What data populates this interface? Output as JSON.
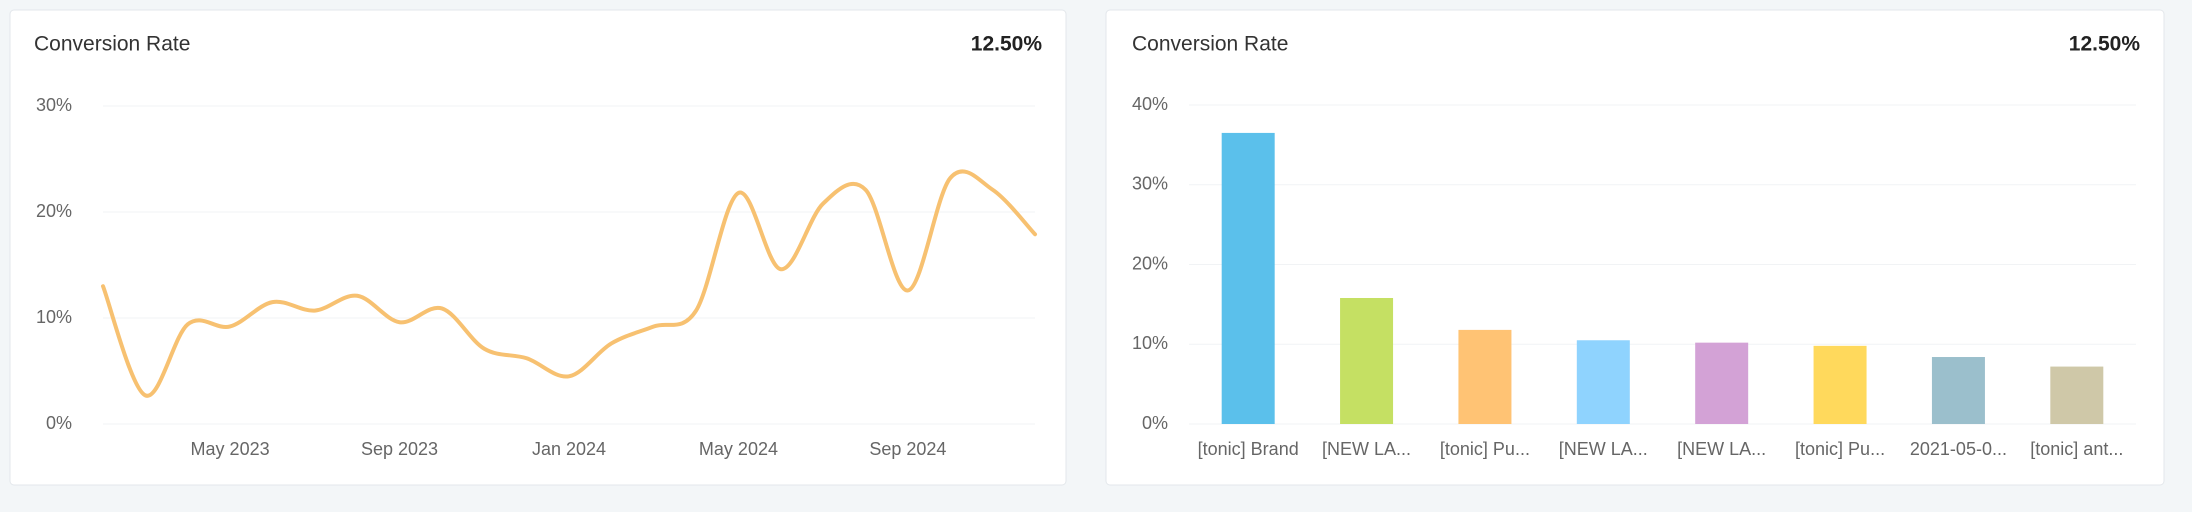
{
  "chart_data": [
    {
      "type": "line",
      "title": "Conversion Rate",
      "summary": "12.50%",
      "x": [
        "2023-02",
        "2023-03",
        "2023-04",
        "2023-05",
        "2023-06",
        "2023-07",
        "2023-08",
        "2023-09",
        "2023-10",
        "2023-11",
        "2023-12",
        "2024-01",
        "2024-02",
        "2024-03",
        "2024-04",
        "2024-05",
        "2024-06",
        "2024-07",
        "2024-08",
        "2024-09",
        "2024-10",
        "2024-11",
        "2024-12"
      ],
      "values": [
        13.0,
        2.7,
        9.4,
        9.2,
        11.5,
        10.7,
        12.1,
        9.6,
        10.9,
        7.1,
        6.2,
        4.5,
        7.6,
        9.2,
        10.7,
        21.8,
        14.6,
        20.8,
        22.1,
        12.6,
        23.2,
        22.1,
        17.9
      ],
      "color": "#f7c171",
      "xticks": [
        {
          "value": "2023-05",
          "label": "May 2023"
        },
        {
          "value": "2023-09",
          "label": "Sep 2023"
        },
        {
          "value": "2024-01",
          "label": "Jan 2024"
        },
        {
          "value": "2024-05",
          "label": "May 2024"
        },
        {
          "value": "2024-09",
          "label": "Sep 2024"
        }
      ],
      "ylim": [
        0,
        30
      ],
      "yticks": [
        {
          "value": 0,
          "label": "0%"
        },
        {
          "value": 10,
          "label": "10%"
        },
        {
          "value": 20,
          "label": "20%"
        },
        {
          "value": 30,
          "label": "30%"
        }
      ],
      "grid": true
    },
    {
      "type": "bar",
      "title": "Conversion Rate",
      "summary": "12.50%",
      "categories": [
        "[tonic] Brand",
        "[NEW LA...",
        "[tonic] Pu...",
        "[NEW LA...",
        "[NEW LA...",
        "[tonic] Pu...",
        "2021-05-0...",
        "[tonic] ant..."
      ],
      "values": [
        36.5,
        15.8,
        11.8,
        10.5,
        10.2,
        9.8,
        8.4,
        7.2
      ],
      "colors": [
        "#5bc0eb",
        "#c5e063",
        "#ffc374",
        "#8fd3fe",
        "#d3a2d6",
        "#ffd95c",
        "#9bbfcc",
        "#cfc8a8"
      ],
      "ylim": [
        0,
        40
      ],
      "yticks": [
        {
          "value": 0,
          "label": "0%"
        },
        {
          "value": 10,
          "label": "10%"
        },
        {
          "value": 20,
          "label": "20%"
        },
        {
          "value": 30,
          "label": "30%"
        },
        {
          "value": 40,
          "label": "40%"
        }
      ],
      "grid": true
    }
  ]
}
